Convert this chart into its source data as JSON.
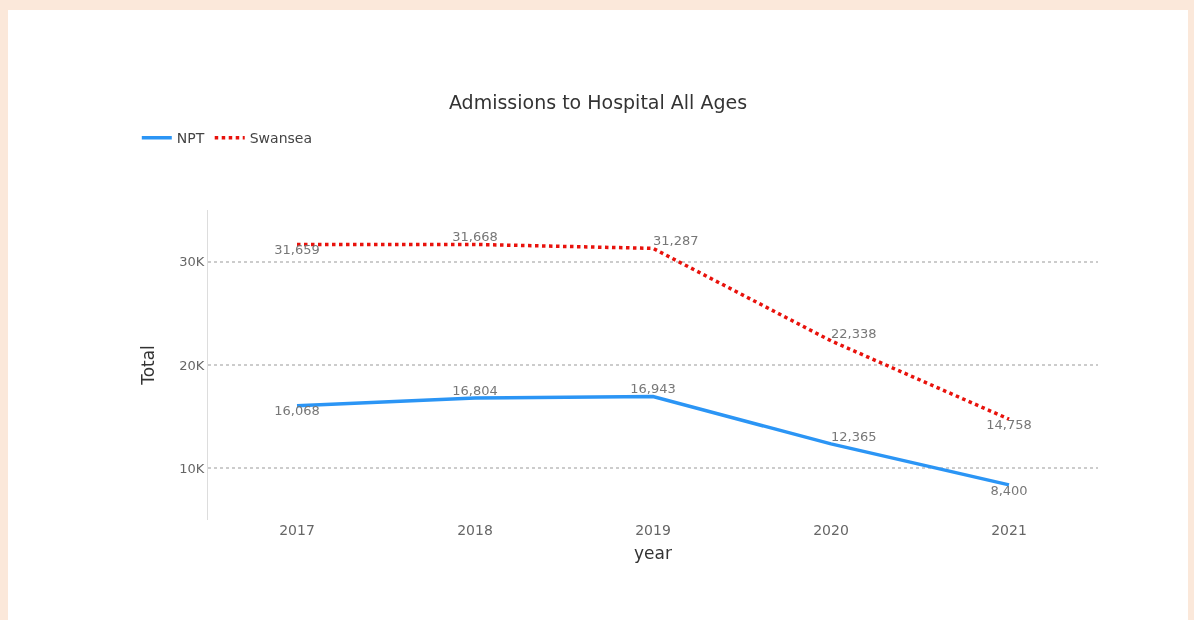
{
  "chart_data": {
    "type": "line",
    "title": "Admissions to Hospital All Ages",
    "xlabel": "year",
    "ylabel": "Total",
    "categories": [
      "2017",
      "2018",
      "2019",
      "2020",
      "2021"
    ],
    "series": [
      {
        "name": "NPT",
        "color": "#2b95f5",
        "line_style": "solid",
        "values": [
          16068,
          16804,
          16943,
          12365,
          8400
        ],
        "value_labels": [
          "16,068",
          "16,804",
          "16,943",
          "12,365",
          "8,400"
        ]
      },
      {
        "name": "Swansea",
        "color": "#e8120c",
        "line_style": "dotted",
        "values": [
          31659,
          31668,
          31287,
          22338,
          14758
        ],
        "value_labels": [
          "31,659",
          "31,668",
          "31,287",
          "22,338",
          "14,758"
        ]
      }
    ],
    "ylim": [
      5000,
      35000
    ],
    "yticks": [
      {
        "value": 10000,
        "label": "10K"
      },
      {
        "value": 20000,
        "label": "20K"
      },
      {
        "value": 30000,
        "label": "30K"
      }
    ],
    "grid": "y",
    "legend": "top left",
    "marker": "none"
  }
}
